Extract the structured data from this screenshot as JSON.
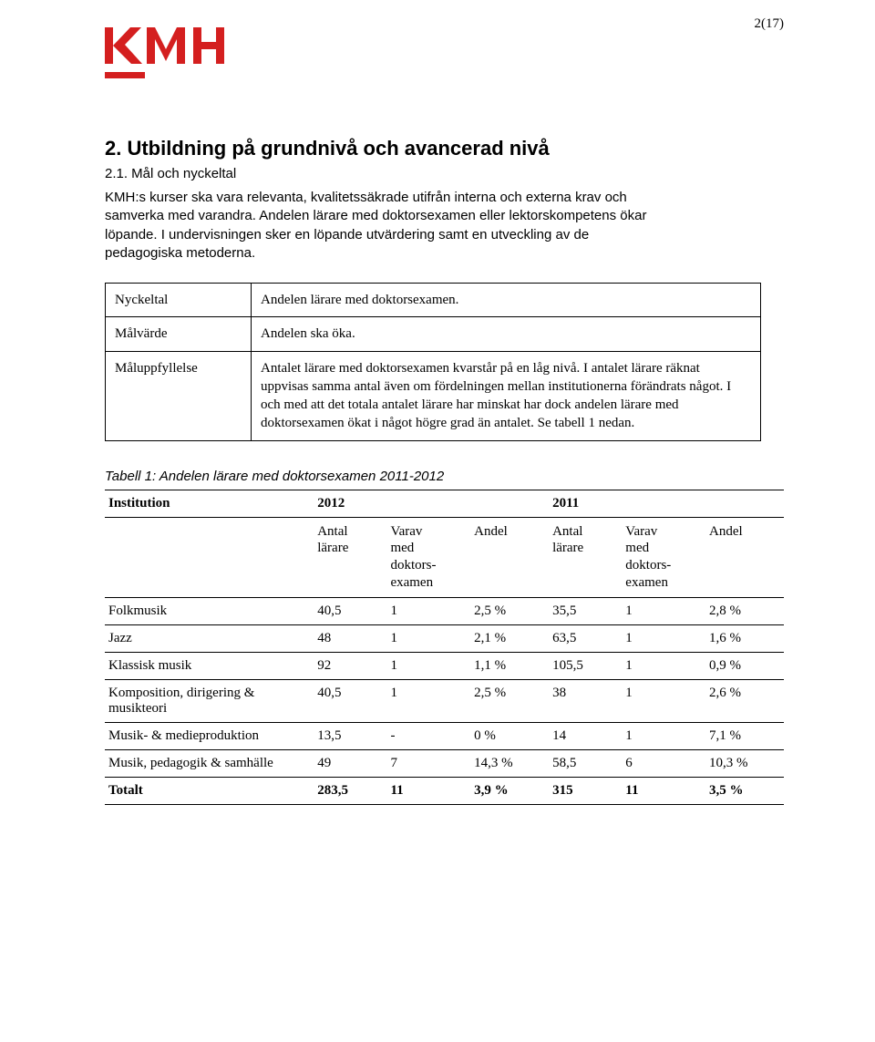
{
  "page_number": "2(17)",
  "logo": {
    "text": "KMH",
    "color": "#d41f1f",
    "underline_color": "#d41f1f"
  },
  "heading": "2. Utbildning på grundnivå och avancerad nivå",
  "subheading": "2.1. Mål och nyckeltal",
  "intro": "KMH:s kurser ska vara relevanta, kvalitetssäkrade utifrån interna och externa krav och samverka med varandra. Andelen lärare med doktorsexamen eller lektorskompetens ökar löpande. I undervisningen sker en löpande utvärdering samt en utveckling av de pedagogiska metoderna.",
  "kv": {
    "nyckeltal_label": "Nyckeltal",
    "nyckeltal_value": "Andelen lärare med doktorsexamen.",
    "malvarde_label": "Målvärde",
    "malvarde_value": "Andelen ska öka.",
    "maluppfyllelse_label": "Måluppfyllelse",
    "maluppfyllelse_value": "Antalet lärare med doktorsexamen kvarstår på en låg nivå. I antalet lärare räknat uppvisas samma antal även om fördelningen mellan institutionerna förändrats något. I och med att det totala antalet lärare har minskat har dock andelen lärare med doktorsexamen ökat i något högre grad än antalet. Se tabell 1 nedan."
  },
  "table_caption": "Tabell 1: Andelen lärare med doktorsexamen 2011-2012",
  "table": {
    "h_institution": "Institution",
    "h_2012": "2012",
    "h_2011": "2011",
    "h_antal": "Antal\nlärare",
    "h_varav": "Varav\nmed\ndoktors-\nexamen",
    "h_andel": "Andel",
    "rows": [
      {
        "inst": "Folkmusik",
        "a12": "40,5",
        "v12": "1",
        "p12": "2,5 %",
        "a11": "35,5",
        "v11": "1",
        "p11": "2,8 %"
      },
      {
        "inst": "Jazz",
        "a12": "48",
        "v12": "1",
        "p12": "2,1 %",
        "a11": "63,5",
        "v11": "1",
        "p11": "1,6 %"
      },
      {
        "inst": "Klassisk musik",
        "a12": "92",
        "v12": "1",
        "p12": "1,1 %",
        "a11": "105,5",
        "v11": "1",
        "p11": "0,9 %"
      },
      {
        "inst": "Komposition, dirigering & musikteori",
        "a12": "40,5",
        "v12": "1",
        "p12": "2,5 %",
        "a11": "38",
        "v11": "1",
        "p11": "2,6 %"
      },
      {
        "inst": "Musik- & medieproduktion",
        "a12": "13,5",
        "v12": "-",
        "p12": "0 %",
        "a11": "14",
        "v11": "1",
        "p11": "7,1 %"
      },
      {
        "inst": "Musik, pedagogik & samhälle",
        "a12": "49",
        "v12": "7",
        "p12": "14,3 %",
        "a11": "58,5",
        "v11": "6",
        "p11": "10,3 %"
      }
    ],
    "total": {
      "inst": "Totalt",
      "a12": "283,5",
      "v12": "11",
      "p12": "3,9 %",
      "a11": "315",
      "v11": "11",
      "p11": "3,5 %"
    }
  }
}
